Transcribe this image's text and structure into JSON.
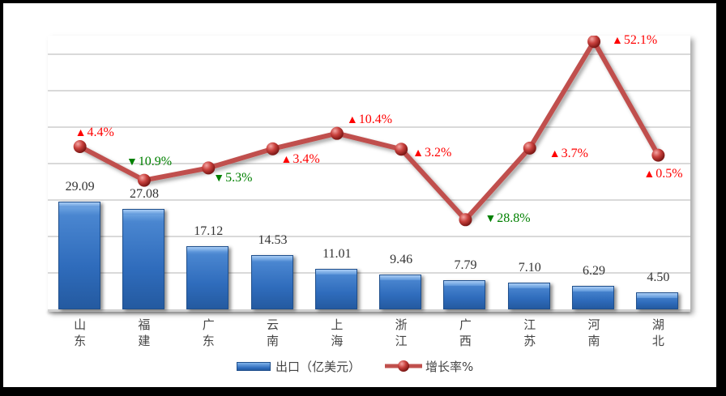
{
  "chart_data": {
    "type": "bar+line",
    "title": "",
    "categories": [
      "山东",
      "福建",
      "广东",
      "云南",
      "上海",
      "浙江",
      "广西",
      "江苏",
      "河南",
      "湖北"
    ],
    "series": [
      {
        "name": "出口（亿美元）",
        "type": "bar",
        "color": "#2f6cbc",
        "values": [
          29.09,
          27.08,
          17.12,
          14.53,
          11.01,
          9.46,
          7.79,
          7.1,
          6.29,
          4.5
        ],
        "labels": [
          "29.09",
          "27.08",
          "17.12",
          "14.53",
          "11.01",
          "9.46",
          "7.79",
          "7.10",
          "6.29",
          "4.50"
        ]
      },
      {
        "name": "增长率%",
        "type": "line",
        "color": "#c0504d",
        "values": [
          4.4,
          -10.9,
          -5.3,
          3.4,
          10.4,
          3.2,
          -28.8,
          3.7,
          52.1,
          0.5
        ],
        "labels": [
          "▲4.4%",
          "▼10.9%",
          "▼5.3%",
          "▲3.4%",
          "▲10.4%",
          "▲3.2%",
          "▼28.8%",
          "▲3.7%",
          "▲52.1%",
          "▲0.5%"
        ]
      }
    ],
    "up_color": "#ff0000",
    "down_color": "#008000",
    "xlabel": "",
    "ylabel": "",
    "grid": true,
    "legend_position": "bottom"
  },
  "legend": {
    "bar_label": "出口（亿美元）",
    "line_label": "增长率%"
  }
}
